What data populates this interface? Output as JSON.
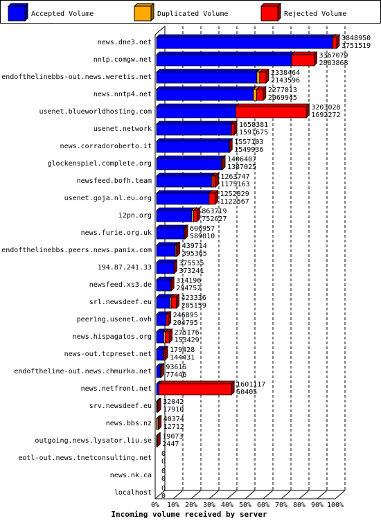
{
  "colors": {
    "accepted": "#0000ff",
    "duplicated": "#ffa800",
    "rejected": "#ff0000",
    "grid": "#000000"
  },
  "legend": {
    "accepted": "Accepted Volume",
    "duplicated": "Duplicated Volume",
    "rejected": "Rejected Volume"
  },
  "chart_data": {
    "type": "bar",
    "orientation": "horizontal",
    "stacked": true,
    "xlabel": "Incoming volume received by server",
    "ylabel": "",
    "xlim": [
      0,
      100
    ],
    "x_ticks": [
      "0%",
      "10%",
      "20%",
      "30%",
      "40%",
      "50%",
      "60%",
      "70%",
      "80%",
      "90%",
      "100%"
    ],
    "grid": true,
    "legend_position": "top",
    "max_value": 3848950,
    "series_names": [
      "Accepted Volume",
      "Duplicated Volume",
      "Rejected Volume"
    ],
    "categories": [
      "news.dne3.net",
      "nntp.comgw.net",
      "endofthelinebbs-out.news.weretis.net",
      "news.nntp4.net",
      "usenet.blueworldhosting.com",
      "usenet.network",
      "news.corradoroberto.it",
      "glockenspiel.complete.org",
      "newsfeed.bofh.team",
      "usenet.goja.nl.eu.org",
      "i2pn.org",
      "news.furie.org.uk",
      "endofthelinebbs.peers.news.panix.com",
      "194.87.241.33",
      "newsfeed.xs3.de",
      "srl.newsdeef.eu",
      "peering.usenet.ovh",
      "news.hispagatos.org",
      "news-out.tcpreset.net",
      "endoftheline-out.news.chmurka.net",
      "news.netfront.net",
      "srv.newsdeef.eu",
      "news.bbs.nz",
      "outgoing.news.lysator.liu.se",
      "eotl-out.news.tnetconsulting.net",
      "news.nk.ca",
      "localhost"
    ],
    "totals": [
      3848950,
      3367079,
      2338464,
      2277013,
      3203028,
      1658381,
      1557103,
      1406407,
      1263747,
      1252829,
      863719,
      606957,
      439714,
      375535,
      314196,
      423336,
      246895,
      275176,
      179428,
      93615,
      1601117,
      32042,
      40374,
      19073,
      0,
      0,
      0
    ],
    "accepted": [
      3751519,
      2883868,
      2143596,
      2069945,
      1692272,
      1591675,
      1549936,
      1387025,
      1175163,
      1122567,
      752627,
      589010,
      395365,
      373241,
      294752,
      285159,
      204795,
      153429,
      144431,
      77446,
      50405,
      17910,
      12712,
      2447,
      0,
      0,
      0
    ],
    "duplicated": [
      10000,
      2000,
      60000,
      70000,
      0,
      5000,
      7000,
      19000,
      25000,
      0,
      40000,
      0,
      20000,
      0,
      0,
      30000,
      0,
      30000,
      5000,
      10000,
      0,
      0,
      25000,
      15000,
      0,
      0,
      0
    ],
    "rejected": [
      87431,
      481211,
      134868,
      137068,
      1510756,
      61706,
      167,
      382,
      63584,
      130262,
      71092,
      17947,
      24349,
      2294,
      19444,
      108177,
      42100,
      91747,
      29997,
      6169,
      1550712,
      14132,
      2662,
      1626,
      0,
      0,
      0
    ]
  }
}
